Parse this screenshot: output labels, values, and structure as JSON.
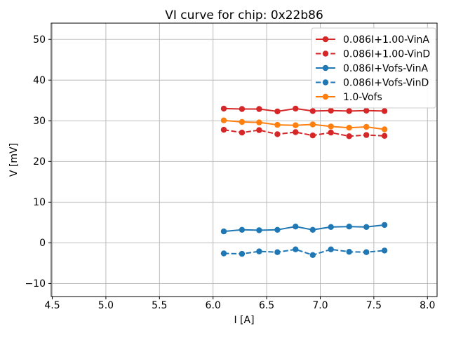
{
  "window": {
    "title": "VI curve for chip: 0x22b86"
  },
  "chart_data": {
    "type": "line",
    "title": "VI curve for chip: 0x22b86",
    "xlabel": "I [A]",
    "ylabel": "V [mV]",
    "xlim": [
      4.49,
      8.09
    ],
    "ylim": [
      -13.2,
      54.0
    ],
    "xticks": [
      4.5,
      5.0,
      5.5,
      6.0,
      6.5,
      7.0,
      7.5,
      8.0
    ],
    "yticks": [
      -10,
      0,
      10,
      20,
      30,
      40,
      50
    ],
    "grid": true,
    "legend_position": "upper-right",
    "x": [
      6.1,
      6.27,
      6.43,
      6.6,
      6.77,
      6.93,
      7.1,
      7.27,
      7.43,
      7.6
    ],
    "series": [
      {
        "name": "0.086I+1.00-VinA",
        "color": "#d62728",
        "line_style": "solid",
        "marker": "circle",
        "values": [
          33.0,
          32.9,
          32.9,
          32.3,
          33.0,
          32.4,
          32.5,
          32.4,
          32.5,
          32.4
        ]
      },
      {
        "name": "0.086I+1.00-VinD",
        "color": "#d62728",
        "line_style": "dashed",
        "marker": "circle",
        "values": [
          27.8,
          27.1,
          27.7,
          26.7,
          27.2,
          26.4,
          27.1,
          26.2,
          26.5,
          26.3
        ]
      },
      {
        "name": "0.086I+Vofs-VinA",
        "color": "#1f77b4",
        "line_style": "solid",
        "marker": "circle",
        "values": [
          2.8,
          3.2,
          3.1,
          3.2,
          4.0,
          3.2,
          3.9,
          4.0,
          3.9,
          4.4
        ]
      },
      {
        "name": "0.086I+Vofs-VinD",
        "color": "#1f77b4",
        "line_style": "dashed",
        "marker": "circle",
        "values": [
          -2.6,
          -2.7,
          -2.1,
          -2.3,
          -1.6,
          -3.0,
          -1.6,
          -2.2,
          -2.3,
          -1.9
        ]
      },
      {
        "name": "1.0-Vofs",
        "color": "#ff7f0e",
        "line_style": "solid",
        "marker": "circle",
        "values": [
          30.1,
          29.7,
          29.6,
          29.0,
          28.9,
          29.1,
          28.6,
          28.3,
          28.5,
          27.9
        ]
      }
    ],
    "style": {
      "grid_color": "#b4b4b4",
      "spine_color": "#000000",
      "legend_edge_color": "#cccccc",
      "background": "#ffffff"
    }
  }
}
